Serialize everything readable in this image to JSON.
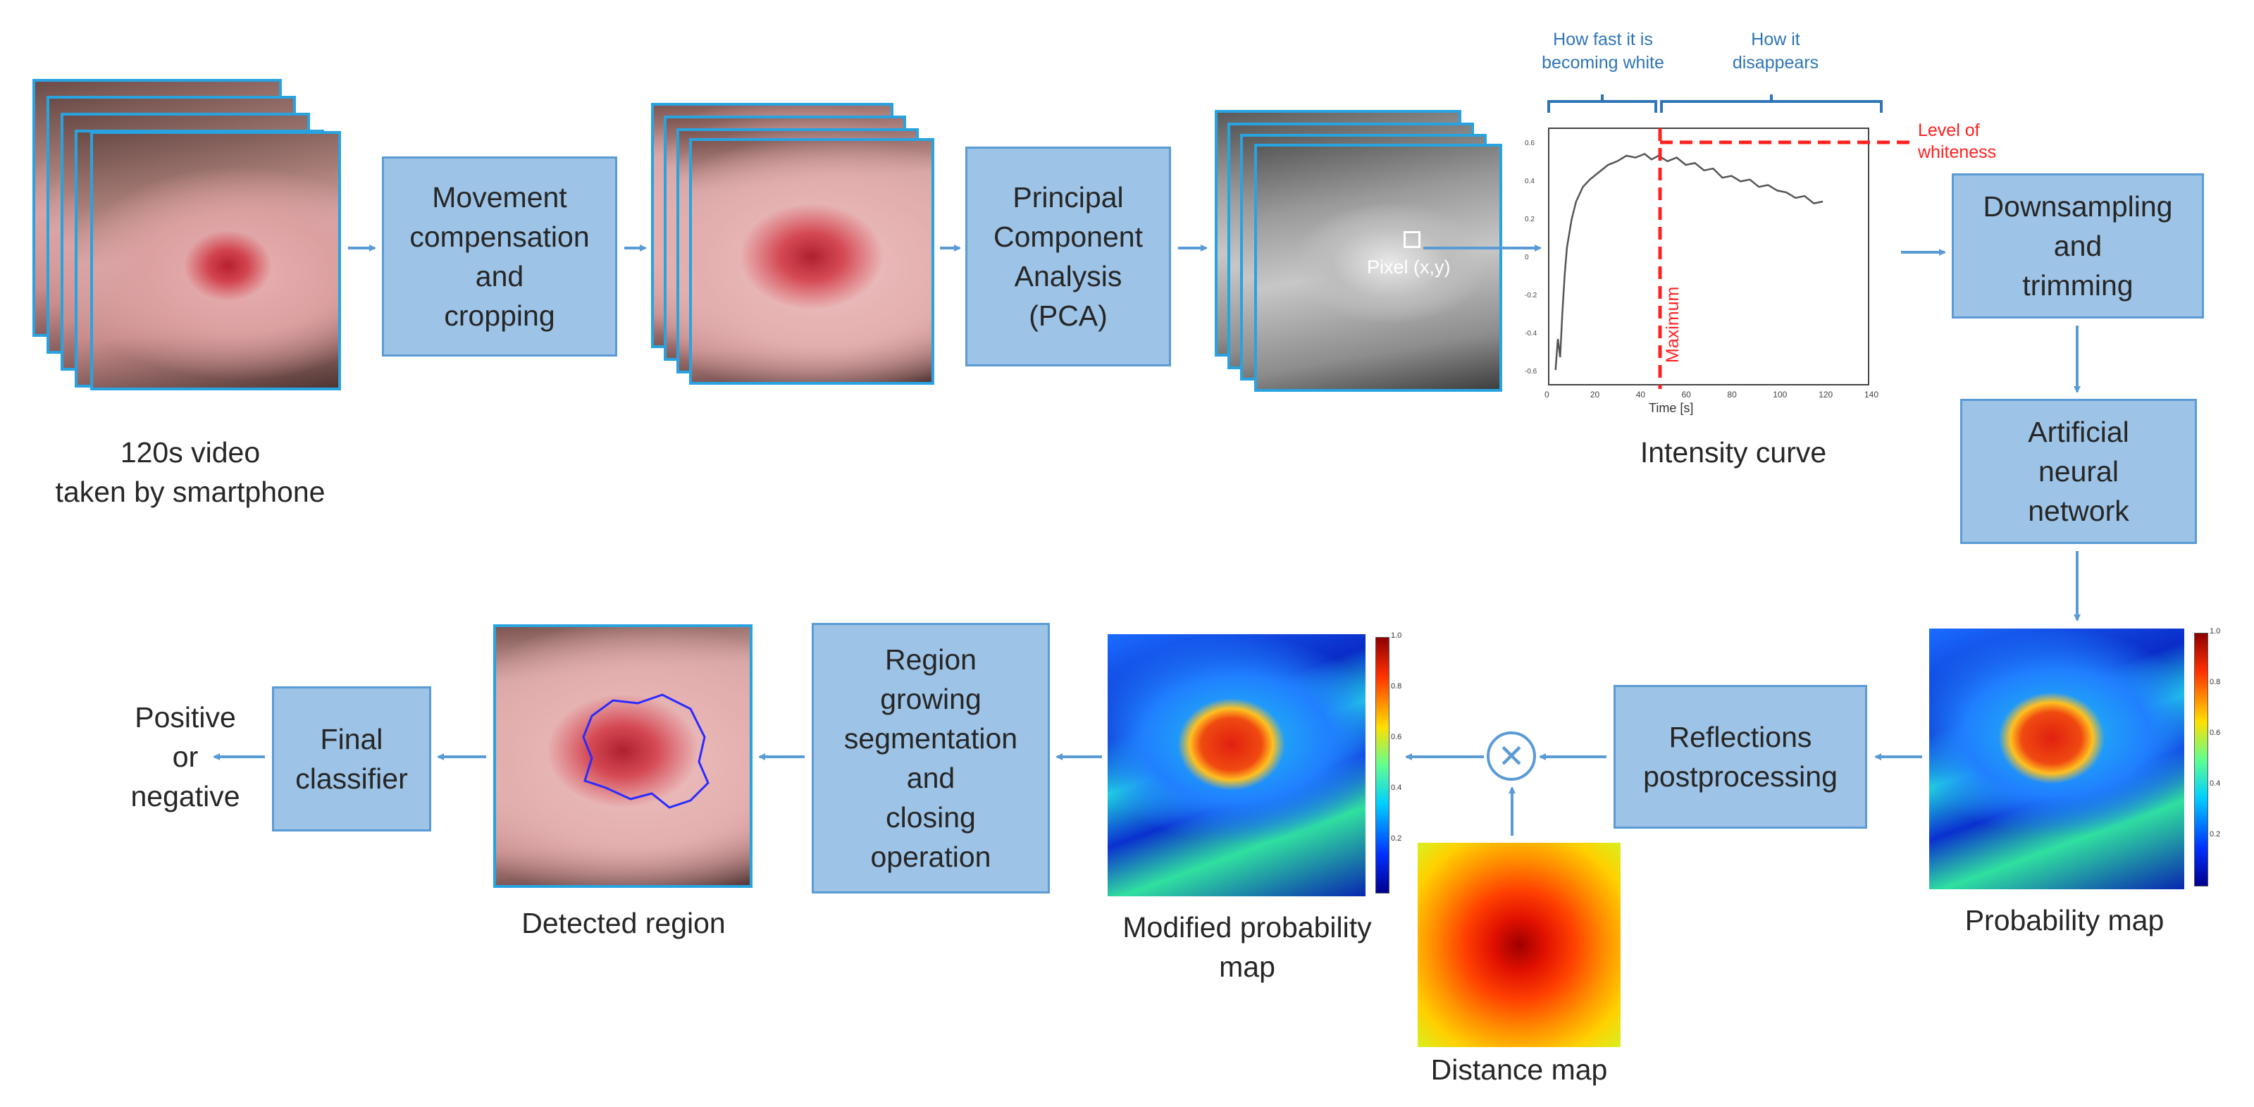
{
  "steps": {
    "movement": "Movement\ncompensation\nand\ncropping",
    "pca": "Principal\nComponent\nAnalysis\n(PCA)",
    "downsampling": "Downsampling\nand\ntrimming",
    "ann": "Artificial\nneural\nnetwork",
    "reflections": "Reflections\npostprocessing",
    "region_growing": "Region\ngrowing\nsegmentation\nand\nclosing\noperation",
    "final_classifier": "Final\nclassifier"
  },
  "captions": {
    "video": "120s video\ntaken by smartphone",
    "intensity_curve": "Intensity curve",
    "probability_map": "Probability map",
    "modified_probability_map": "Modified probability\nmap",
    "distance_map": "Distance map",
    "detected_region": "Detected region",
    "output": "Positive\nor\nnegative"
  },
  "annotations": {
    "pixel": "Pixel (x,y)",
    "how_fast": "How fast it is\nbecoming white",
    "how_disappears": "How it\ndisappears",
    "level_of_whiteness": "Level of\nwhiteness",
    "maximum": "Maximum",
    "multiply_symbol": "⊗"
  },
  "colorbar_ticks": [
    "1.0",
    "0.8",
    "0.6",
    "0.4",
    "0.2"
  ],
  "chart_data": {
    "type": "line",
    "title": "",
    "xlabel": "Time [s]",
    "ylabel": "",
    "x_ticks": [
      "0",
      "20",
      "40",
      "60",
      "80",
      "100",
      "120",
      "140"
    ],
    "y_ticks": [
      "0.6",
      "0.4",
      "0.2",
      "0",
      "-0.2",
      "-0.4",
      "-0.6"
    ],
    "xlim": [
      0,
      140
    ],
    "ylim": [
      -0.7,
      0.7
    ],
    "maximum_time": 48,
    "whiteness_level": 0.58,
    "series": [
      {
        "name": "intensity",
        "x": [
          3,
          4,
          5,
          6,
          7,
          8,
          10,
          12,
          15,
          18,
          22,
          26,
          30,
          34,
          38,
          42,
          45,
          48,
          52,
          56,
          60,
          64,
          68,
          72,
          76,
          80,
          84,
          88,
          92,
          96,
          100,
          104,
          108,
          112,
          116,
          120
        ],
        "y": [
          -0.62,
          -0.45,
          -0.55,
          -0.3,
          -0.1,
          0.05,
          0.2,
          0.3,
          0.38,
          0.42,
          0.46,
          0.5,
          0.52,
          0.55,
          0.54,
          0.56,
          0.53,
          0.55,
          0.52,
          0.54,
          0.5,
          0.51,
          0.47,
          0.48,
          0.43,
          0.44,
          0.41,
          0.42,
          0.38,
          0.39,
          0.36,
          0.35,
          0.32,
          0.33,
          0.29,
          0.3
        ]
      }
    ]
  },
  "colors": {
    "box_fill": "#9dc3e6",
    "box_border": "#5b9bd5",
    "arrow": "#5b9bd5",
    "frame_border": "#29a3e0",
    "annotation_blue": "#2e75b6",
    "annotation_red": "#ff2020"
  }
}
